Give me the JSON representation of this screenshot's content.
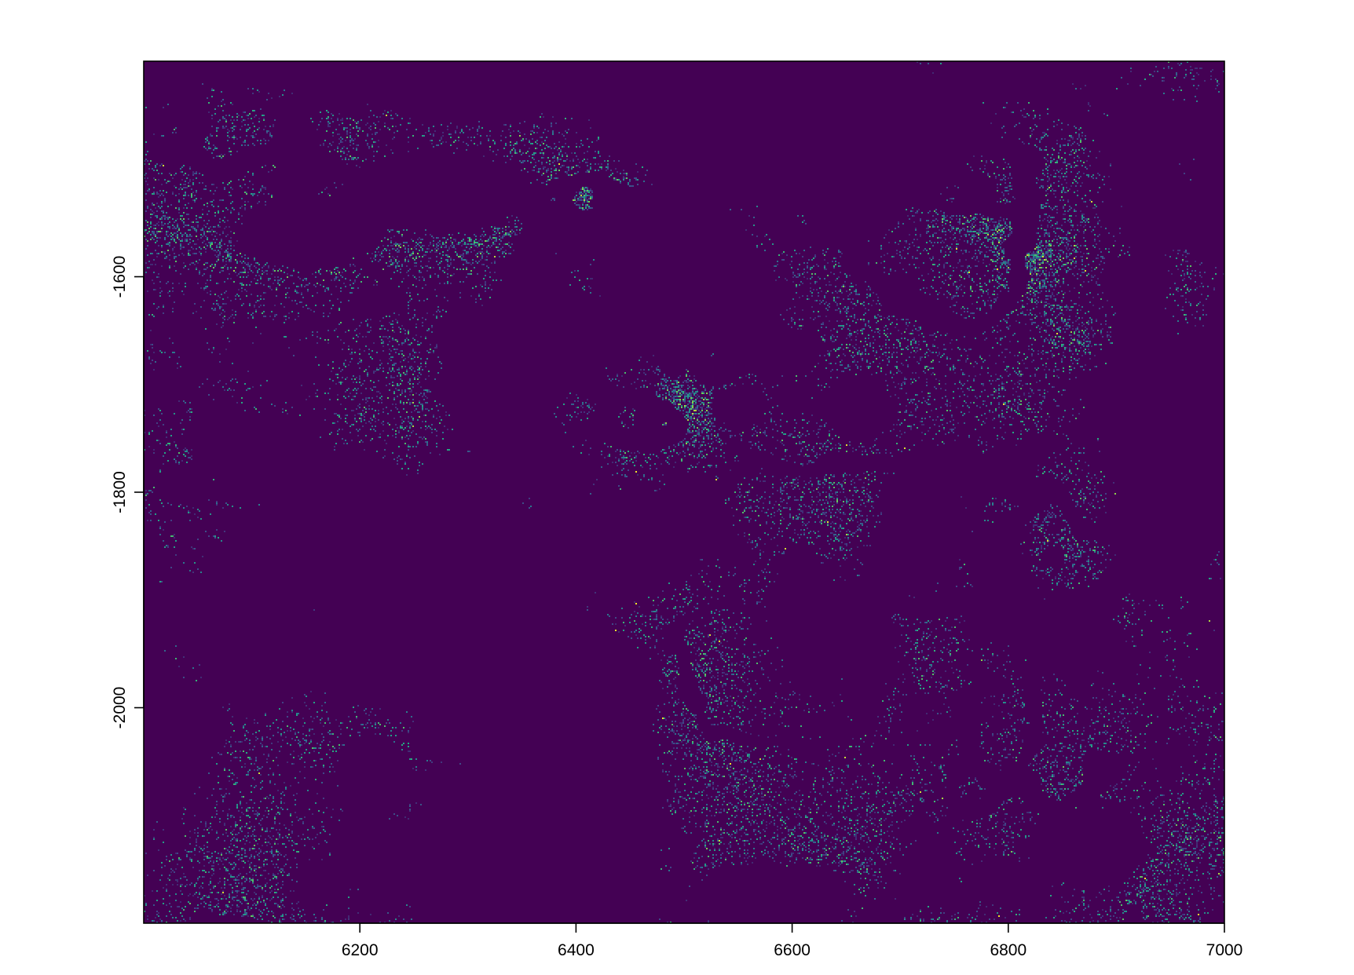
{
  "chart_data": {
    "type": "heatmap",
    "title": "",
    "xlabel": "",
    "ylabel": "",
    "xlim": [
      6000,
      7000
    ],
    "ylim": [
      -2200,
      -1400
    ],
    "x_ticks": [
      6200,
      6400,
      6600,
      6800,
      7000
    ],
    "x_tick_labels": [
      "6200",
      "6400",
      "6600",
      "6800",
      "7000"
    ],
    "y_ticks": [
      -1600,
      -1800,
      -2000
    ],
    "y_tick_labels": [
      "-1600",
      "-1800",
      "-2000"
    ],
    "grid": false,
    "legend": "none",
    "colormap": "viridis",
    "colors": {
      "low": "#440154",
      "mid_low": "#3b528b",
      "mid": "#21908d",
      "mid_high": "#5dc963",
      "high": "#fde725",
      "frame": "#000000"
    }
  }
}
